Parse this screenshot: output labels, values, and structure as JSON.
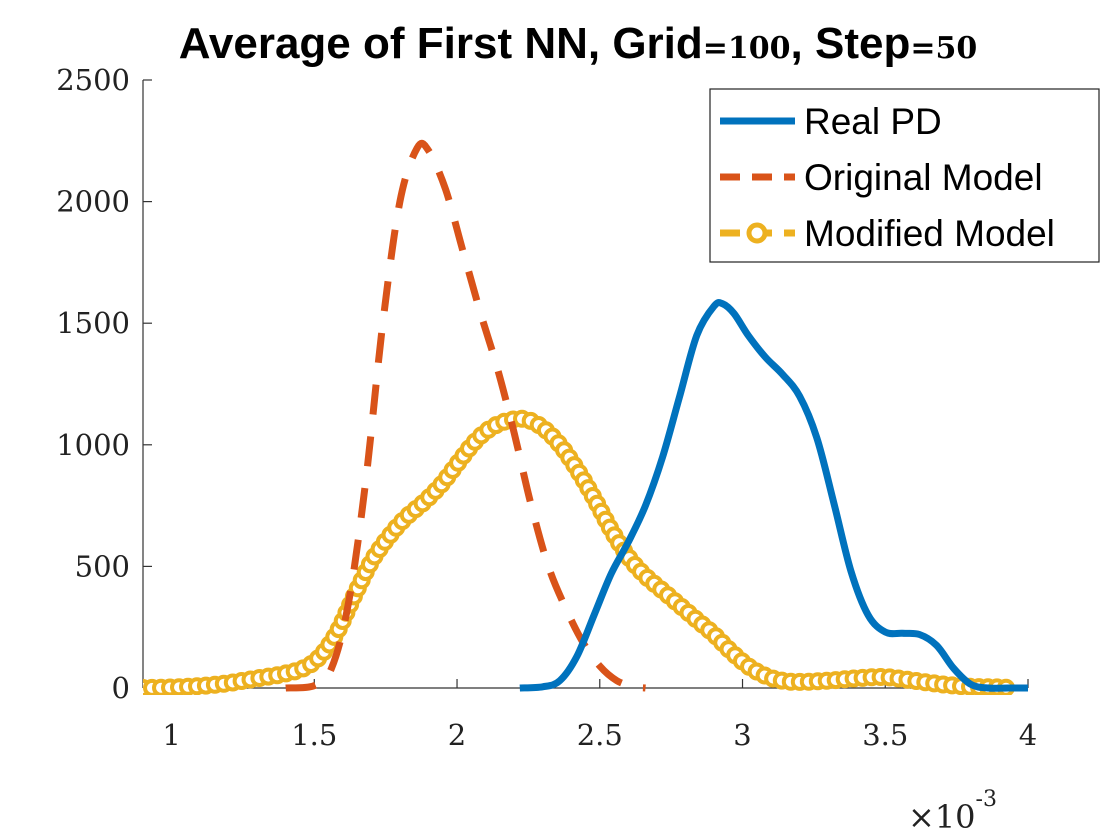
{
  "chart_data": {
    "type": "line",
    "title": "Average of First NN, Grid=100, Step=50",
    "title_parts": {
      "a": "Average of First NN, Grid",
      "eq1": "=",
      "grid": "100",
      "b": ", Step",
      "eq2": "=",
      "step": "50"
    },
    "xlabel": "",
    "ylabel": "",
    "x_multiplier": {
      "base": "×10",
      "exponent": "-3"
    },
    "xlim": [
      0.9,
      4.0
    ],
    "ylim": [
      0,
      2500
    ],
    "x_ticks": [
      1,
      1.5,
      2,
      2.5,
      3,
      3.5,
      4
    ],
    "x_tick_labels": [
      "1",
      "1.5",
      "2",
      "2.5",
      "3",
      "3.5",
      "4"
    ],
    "y_ticks": [
      0,
      500,
      1000,
      1500,
      2000,
      2500
    ],
    "y_tick_labels": [
      "0",
      "500",
      "1000",
      "1500",
      "2000",
      "2500"
    ],
    "grid": false,
    "legend_position": "top-right",
    "series": [
      {
        "name": "Real PD",
        "color": "#0072BD",
        "style": "solid",
        "marker": "none",
        "points": [
          [
            2.22,
            0
          ],
          [
            2.3,
            5
          ],
          [
            2.36,
            30
          ],
          [
            2.42,
            130
          ],
          [
            2.48,
            300
          ],
          [
            2.54,
            470
          ],
          [
            2.6,
            600
          ],
          [
            2.66,
            750
          ],
          [
            2.72,
            950
          ],
          [
            2.78,
            1200
          ],
          [
            2.84,
            1450
          ],
          [
            2.9,
            1570
          ],
          [
            2.93,
            1580
          ],
          [
            2.97,
            1540
          ],
          [
            3.02,
            1450
          ],
          [
            3.08,
            1360
          ],
          [
            3.14,
            1290
          ],
          [
            3.2,
            1200
          ],
          [
            3.26,
            1030
          ],
          [
            3.32,
            760
          ],
          [
            3.38,
            480
          ],
          [
            3.44,
            300
          ],
          [
            3.5,
            230
          ],
          [
            3.56,
            225
          ],
          [
            3.62,
            220
          ],
          [
            3.68,
            175
          ],
          [
            3.74,
            80
          ],
          [
            3.8,
            15
          ],
          [
            3.86,
            0
          ],
          [
            3.93,
            0
          ],
          [
            4.0,
            0
          ]
        ]
      },
      {
        "name": "Original Model",
        "color": "#D95319",
        "style": "dashed",
        "marker": "none",
        "points": [
          [
            1.4,
            0
          ],
          [
            1.5,
            10
          ],
          [
            1.56,
            80
          ],
          [
            1.62,
            350
          ],
          [
            1.68,
            850
          ],
          [
            1.74,
            1500
          ],
          [
            1.8,
            2000
          ],
          [
            1.86,
            2220
          ],
          [
            1.9,
            2210
          ],
          [
            1.96,
            2050
          ],
          [
            2.02,
            1800
          ],
          [
            2.08,
            1550
          ],
          [
            2.14,
            1320
          ],
          [
            2.2,
            1050
          ],
          [
            2.26,
            750
          ],
          [
            2.32,
            500
          ],
          [
            2.38,
            330
          ],
          [
            2.44,
            190
          ],
          [
            2.5,
            90
          ],
          [
            2.56,
            30
          ],
          [
            2.62,
            5
          ],
          [
            2.66,
            0
          ]
        ]
      },
      {
        "name": "Modified Model",
        "color": "#EDB120",
        "style": "dashed",
        "marker": "circle",
        "points": [
          [
            0.9,
            0
          ],
          [
            1.0,
            2
          ],
          [
            1.1,
            8
          ],
          [
            1.2,
            20
          ],
          [
            1.3,
            40
          ],
          [
            1.38,
            55
          ],
          [
            1.46,
            80
          ],
          [
            1.52,
            130
          ],
          [
            1.58,
            230
          ],
          [
            1.64,
            380
          ],
          [
            1.7,
            520
          ],
          [
            1.76,
            620
          ],
          [
            1.82,
            700
          ],
          [
            1.88,
            760
          ],
          [
            1.94,
            830
          ],
          [
            2.0,
            920
          ],
          [
            2.06,
            1010
          ],
          [
            2.12,
            1070
          ],
          [
            2.18,
            1100
          ],
          [
            2.24,
            1105
          ],
          [
            2.3,
            1070
          ],
          [
            2.36,
            1000
          ],
          [
            2.42,
            900
          ],
          [
            2.48,
            780
          ],
          [
            2.54,
            650
          ],
          [
            2.6,
            540
          ],
          [
            2.66,
            460
          ],
          [
            2.72,
            400
          ],
          [
            2.78,
            340
          ],
          [
            2.84,
            280
          ],
          [
            2.9,
            220
          ],
          [
            2.96,
            150
          ],
          [
            3.02,
            90
          ],
          [
            3.08,
            50
          ],
          [
            3.14,
            30
          ],
          [
            3.2,
            25
          ],
          [
            3.3,
            30
          ],
          [
            3.4,
            40
          ],
          [
            3.5,
            45
          ],
          [
            3.6,
            30
          ],
          [
            3.7,
            15
          ],
          [
            3.8,
            5
          ],
          [
            3.9,
            2
          ],
          [
            3.94,
            0
          ]
        ]
      }
    ]
  }
}
